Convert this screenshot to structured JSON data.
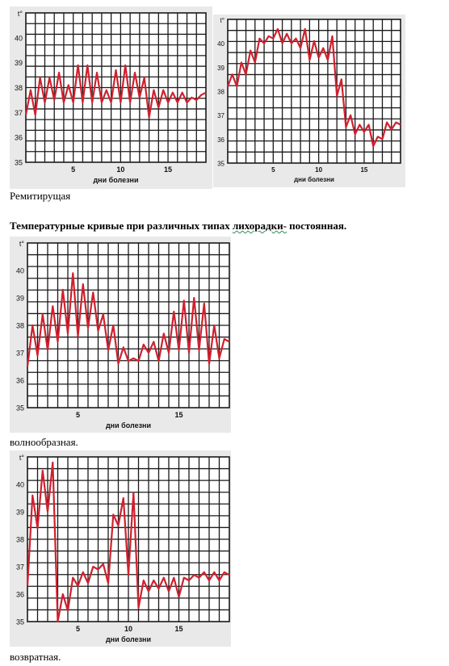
{
  "caption_1": "Ремитирущая",
  "heading": {
    "before": "Температурные кривые при различных типах ",
    "marked": "лихорадки-",
    "after": " постоянная."
  },
  "caption_3": "волнообразная.",
  "caption_4": "возвратная.",
  "colors": {
    "curve": "#d0202e",
    "grid": "#1a1a1a",
    "panel": "#e9e9e9"
  },
  "chart_data": [
    {
      "type": "line",
      "y_axis_symbol": "t°",
      "xlabel": "дни болезни",
      "x_ticks": [
        5,
        10,
        15
      ],
      "y_ticks": [
        35,
        36,
        37,
        38,
        39,
        40
      ],
      "xlim": [
        0,
        19
      ],
      "ylim": [
        35,
        41
      ],
      "series": [
        {
          "x": [
            0,
            0.5,
            1,
            1.5,
            2,
            2.5,
            3,
            3.5,
            4,
            4.5,
            5,
            5.5,
            6,
            6.5,
            7,
            7.5,
            8,
            8.5,
            9,
            9.5,
            10,
            10.5,
            11,
            11.5,
            12,
            12.5,
            13,
            13.5,
            14,
            14.5,
            15,
            15.5,
            16,
            16.5,
            17,
            17.5,
            18,
            18.5,
            19
          ],
          "values": [
            36.9,
            37.9,
            36.9,
            38.4,
            37.4,
            38.4,
            37.5,
            38.6,
            37.4,
            38.1,
            37.4,
            38.9,
            37.4,
            38.9,
            37.4,
            38.6,
            37.4,
            37.9,
            37.4,
            38.7,
            37.4,
            38.9,
            37.4,
            38.6,
            37.6,
            38.4,
            36.8,
            37.9,
            37.2,
            37.9,
            37.4,
            37.8,
            37.4,
            37.8,
            37.4,
            37.6,
            37.5,
            37.7,
            37.8
          ]
        }
      ]
    },
    {
      "type": "line",
      "y_axis_symbol": "t°",
      "xlabel": "дни болезни",
      "x_ticks": [
        5,
        10,
        15
      ],
      "y_ticks": [
        35,
        36,
        37,
        38,
        39,
        40
      ],
      "xlim": [
        0,
        19
      ],
      "ylim": [
        35,
        41
      ],
      "series": [
        {
          "x": [
            0,
            0.5,
            1,
            1.5,
            2,
            2.5,
            3,
            3.5,
            4,
            4.5,
            5,
            5.5,
            6,
            6.5,
            7,
            7.5,
            8,
            8.5,
            9,
            9.5,
            10,
            10.5,
            11,
            11.5,
            12,
            12.5,
            13,
            13.5,
            14,
            14.5,
            15,
            15.5,
            16,
            16.5,
            17,
            17.5,
            18,
            18.5,
            19
          ],
          "values": [
            38.2,
            38.7,
            38.2,
            39.2,
            38.7,
            39.7,
            39.2,
            40.2,
            40.0,
            40.3,
            40.2,
            40.6,
            40.0,
            40.4,
            40.0,
            40.2,
            39.8,
            40.6,
            39.3,
            40.1,
            39.4,
            39.8,
            39.3,
            40.3,
            37.8,
            38.5,
            36.5,
            37.0,
            36.2,
            36.6,
            36.3,
            36.6,
            35.7,
            36.1,
            36.0,
            36.7,
            36.4,
            36.7,
            36.6
          ]
        }
      ]
    },
    {
      "type": "line",
      "y_axis_symbol": "t°",
      "xlabel": "дни болезни",
      "x_ticks": [
        5,
        15
      ],
      "y_ticks": [
        35,
        36,
        37,
        38,
        39,
        40
      ],
      "xlim": [
        0,
        20
      ],
      "ylim": [
        35,
        41
      ],
      "series": [
        {
          "x": [
            0,
            0.5,
            1,
            1.5,
            2,
            2.5,
            3,
            3.5,
            4,
            4.5,
            5,
            5.5,
            6,
            6.5,
            7,
            7.5,
            8,
            8.5,
            9,
            9.5,
            10,
            10.5,
            11,
            11.5,
            12,
            12.5,
            13,
            13.5,
            14,
            14.5,
            15,
            15.5,
            16,
            16.5,
            17,
            17.5,
            18,
            18.5,
            19,
            19.5,
            20
          ],
          "values": [
            36.5,
            38.0,
            36.9,
            38.4,
            37.1,
            38.7,
            37.4,
            39.3,
            37.7,
            39.9,
            37.6,
            39.5,
            37.9,
            39.2,
            37.8,
            38.4,
            37.1,
            38.0,
            36.6,
            37.2,
            36.7,
            36.8,
            36.7,
            37.3,
            37.0,
            37.4,
            36.7,
            37.7,
            37.0,
            38.5,
            37.1,
            38.9,
            37.0,
            39.0,
            37.1,
            38.8,
            36.6,
            38.0,
            36.8,
            37.5,
            37.4
          ]
        }
      ]
    },
    {
      "type": "line",
      "y_axis_symbol": "t°",
      "xlabel": "дни болезни",
      "x_ticks": [
        5,
        10,
        15
      ],
      "y_ticks": [
        35,
        36,
        37,
        38,
        39,
        40
      ],
      "xlim": [
        0,
        20
      ],
      "ylim": [
        35,
        41
      ],
      "series": [
        {
          "x": [
            0,
            0.5,
            1,
            1.5,
            2,
            2.5,
            3,
            3.5,
            4,
            4.5,
            5,
            5.5,
            6,
            6.5,
            7,
            7.5,
            8,
            8.5,
            9,
            9.5,
            10,
            10.5,
            11,
            11.5,
            12,
            12.5,
            13,
            13.5,
            14,
            14.5,
            15,
            15.5,
            16,
            16.5,
            17,
            17.5,
            18,
            18.5,
            19,
            19.5,
            20
          ],
          "values": [
            36.3,
            39.6,
            38.4,
            40.5,
            39.0,
            40.8,
            35.0,
            36.0,
            35.4,
            36.6,
            36.3,
            36.8,
            36.4,
            37.0,
            36.9,
            37.1,
            36.4,
            38.9,
            38.5,
            39.5,
            36.7,
            39.7,
            35.5,
            36.5,
            36.1,
            36.5,
            36.2,
            36.6,
            36.1,
            36.6,
            35.9,
            36.6,
            36.5,
            36.7,
            36.6,
            36.8,
            36.5,
            36.8,
            36.5,
            36.8,
            36.7
          ]
        }
      ]
    }
  ]
}
